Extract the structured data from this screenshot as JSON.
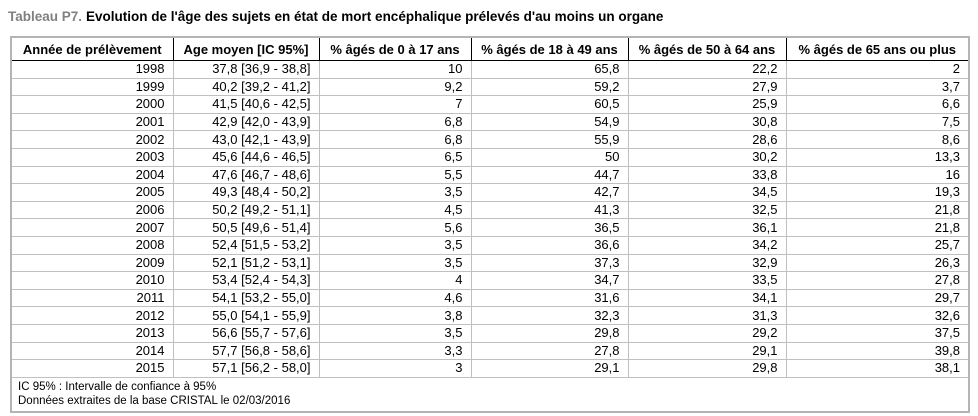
{
  "title": {
    "prefix": "Tableau P7.",
    "text": "Evolution de l'âge des sujets en état de mort encéphalique prélevés d'au moins un organe"
  },
  "table": {
    "columns": [
      "Année de prélèvement",
      "Age moyen [IC 95%]",
      "% âgés de 0 à 17 ans",
      "% âgés de 18 à 49 ans",
      "% âgés de 50 à 64 ans",
      "% âgés de 65 ans ou plus"
    ],
    "column_keys": [
      "annee",
      "age-moyen",
      "pct-0-17",
      "pct-18-49",
      "pct-50-64",
      "pct-65-plus"
    ],
    "rows": [
      [
        "1998",
        "37,8 [36,9 - 38,8]",
        "10",
        "65,8",
        "22,2",
        "2"
      ],
      [
        "1999",
        "40,2 [39,2 - 41,2]",
        "9,2",
        "59,2",
        "27,9",
        "3,7"
      ],
      [
        "2000",
        "41,5 [40,6 - 42,5]",
        "7",
        "60,5",
        "25,9",
        "6,6"
      ],
      [
        "2001",
        "42,9 [42,0 - 43,9]",
        "6,8",
        "54,9",
        "30,8",
        "7,5"
      ],
      [
        "2002",
        "43,0 [42,1 - 43,9]",
        "6,8",
        "55,9",
        "28,6",
        "8,6"
      ],
      [
        "2003",
        "45,6 [44,6 - 46,5]",
        "6,5",
        "50",
        "30,2",
        "13,3"
      ],
      [
        "2004",
        "47,6 [46,7 - 48,6]",
        "5,5",
        "44,7",
        "33,8",
        "16"
      ],
      [
        "2005",
        "49,3 [48,4 - 50,2]",
        "3,5",
        "42,7",
        "34,5",
        "19,3"
      ],
      [
        "2006",
        "50,2 [49,2 - 51,1]",
        "4,5",
        "41,3",
        "32,5",
        "21,8"
      ],
      [
        "2007",
        "50,5 [49,6 - 51,4]",
        "5,6",
        "36,5",
        "36,1",
        "21,8"
      ],
      [
        "2008",
        "52,4 [51,5 - 53,2]",
        "3,5",
        "36,6",
        "34,2",
        "25,7"
      ],
      [
        "2009",
        "52,1 [51,2 - 53,1]",
        "3,5",
        "37,3",
        "32,9",
        "26,3"
      ],
      [
        "2010",
        "53,4 [52,4 - 54,3]",
        "4",
        "34,7",
        "33,5",
        "27,8"
      ],
      [
        "2011",
        "54,1 [53,2 - 55,0]",
        "4,6",
        "31,6",
        "34,1",
        "29,7"
      ],
      [
        "2012",
        "55,0 [54,1 - 55,9]",
        "3,8",
        "32,3",
        "31,3",
        "32,6"
      ],
      [
        "2013",
        "56,6 [55,7 - 57,6]",
        "3,5",
        "29,8",
        "29,2",
        "37,5"
      ],
      [
        "2014",
        "57,7 [56,8 - 58,6]",
        "3,3",
        "27,8",
        "29,1",
        "39,8"
      ],
      [
        "2015",
        "57,1 [56,2 - 58,0]",
        "3",
        "29,1",
        "29,8",
        "38,1"
      ]
    ],
    "footnotes": [
      "IC 95% : Intervalle de confiance à 95%",
      "Données extraites de la base CRISTAL le 02/03/2016"
    ]
  },
  "colors": {
    "title_prefix": "#808080",
    "text": "#000000",
    "header_border": "#000000",
    "cell_border": "#c0c0c0",
    "outer_border": "#b4b4b4",
    "background": "#ffffff"
  }
}
